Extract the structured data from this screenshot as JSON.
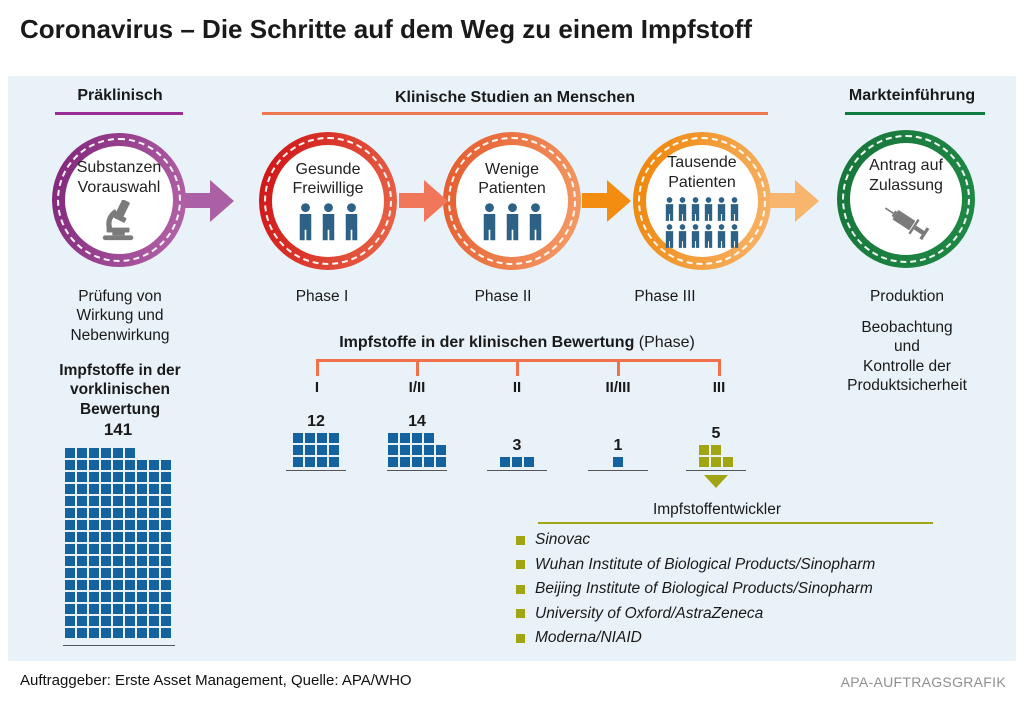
{
  "title": "Coronavirus – Die Schritte auf dem Weg zu einem Impfstoff",
  "colors": {
    "panel_bg": "#e9f2f9",
    "person": "#2d6286",
    "unit_blue": "#15639e",
    "unit_olive": "#a2a512",
    "bracket": "#f2714d",
    "icon_gray": "#7b7b7b"
  },
  "sections": [
    {
      "label": "Präklinisch",
      "underline_color": "#9b2d96"
    },
    {
      "label": "Klinische Studien an Menschen",
      "underline_color": "#f0784e"
    },
    {
      "label": "Markteinführung",
      "underline_color": "#0e7c3f"
    }
  ],
  "stages": [
    {
      "label": "Substanzen\nVorauswahl",
      "icon": "microscope-icon",
      "ring_colors": [
        "#7f2379",
        "#b667aa"
      ],
      "arrow_color": "#ab5fa5",
      "caption": "Prüfung von\nWirkung und\nNebenwirkung"
    },
    {
      "label": "Gesunde\nFreiwillige",
      "icon": "person-icon",
      "person_count": 3,
      "ring_colors": [
        "#ce0f13",
        "#ea6a4b"
      ],
      "arrow_color": "#f0775a",
      "caption": "Phase I"
    },
    {
      "label": "Wenige\nPatienten",
      "icon": "person-icon",
      "person_count": 3,
      "ring_colors": [
        "#e4582b",
        "#f59f69"
      ],
      "arrow_color": "#f28d12",
      "caption": "Phase II"
    },
    {
      "label": "Tausende\nPatienten",
      "icon": "person-icon",
      "person_count": 12,
      "ring_colors": [
        "#ee8303",
        "#f8b66f"
      ],
      "arrow_color": "#f7b56d",
      "caption": "Phase III"
    },
    {
      "label": "Antrag auf\nZulassung",
      "icon": "syringe-icon",
      "ring_colors": [
        "#17753a",
        "#1f8a46"
      ],
      "caption": "Produktion",
      "caption2": "Beobachtung und\nKontrolle der\nProduktsicherheit"
    }
  ],
  "preclinical": {
    "heading": "Impfstoffe in der\nvorklinischen\nBewertung",
    "count": "141",
    "grid": {
      "rows": [
        6,
        9,
        9,
        9,
        9,
        9,
        9,
        9,
        9,
        9,
        9,
        9,
        9,
        9,
        9,
        9
      ],
      "color": "#15639e",
      "square": 10,
      "gap": 2
    }
  },
  "clinical": {
    "heading_bold": "Impfstoffe in der klinischen Bewertung",
    "heading_regular": " (Phase)",
    "groups": [
      {
        "phase": "I",
        "count": "12",
        "grid": {
          "rows": [
            4,
            4,
            4
          ],
          "color": "#15639e",
          "square": 10,
          "gap": 2
        }
      },
      {
        "phase": "I/II",
        "count": "14",
        "grid": {
          "rows": [
            4,
            5,
            5
          ],
          "color": "#15639e",
          "square": 10,
          "gap": 2
        }
      },
      {
        "phase": "II",
        "count": "3",
        "grid": {
          "rows": [
            3
          ],
          "color": "#15639e",
          "square": 10,
          "gap": 2
        }
      },
      {
        "phase": "II/III",
        "count": "1",
        "grid": {
          "rows": [
            1
          ],
          "color": "#15639e",
          "square": 10,
          "gap": 2
        }
      },
      {
        "phase": "III",
        "count": "5",
        "grid": {
          "rows": [
            2,
            3
          ],
          "color": "#a2a512",
          "square": 10,
          "gap": 2
        }
      }
    ]
  },
  "developers": {
    "heading": "Impfstoffentwickler",
    "items": [
      "Sinovac",
      "Wuhan Institute of Biological Products/Sinopharm",
      "Beijing Institute of Biological Products/Sinopharm",
      "University of Oxford/AstraZeneca",
      "Moderna/NIAID"
    ]
  },
  "footer": {
    "left": "Auftraggeber: Erste Asset Management, Quelle: APA/WHO",
    "right": "APA-AUFTRAGSGRAFIK"
  },
  "chart_data": [
    {
      "type": "bar",
      "title": "Impfstoffe in der vorklinischen Bewertung",
      "categories": [
        "vorklinische Bewertung"
      ],
      "values": [
        141
      ]
    },
    {
      "type": "bar",
      "title": "Impfstoffe in der klinischen Bewertung (Phase)",
      "categories": [
        "I",
        "I/II",
        "II",
        "II/III",
        "III"
      ],
      "values": [
        12,
        14,
        3,
        1,
        5
      ]
    }
  ]
}
